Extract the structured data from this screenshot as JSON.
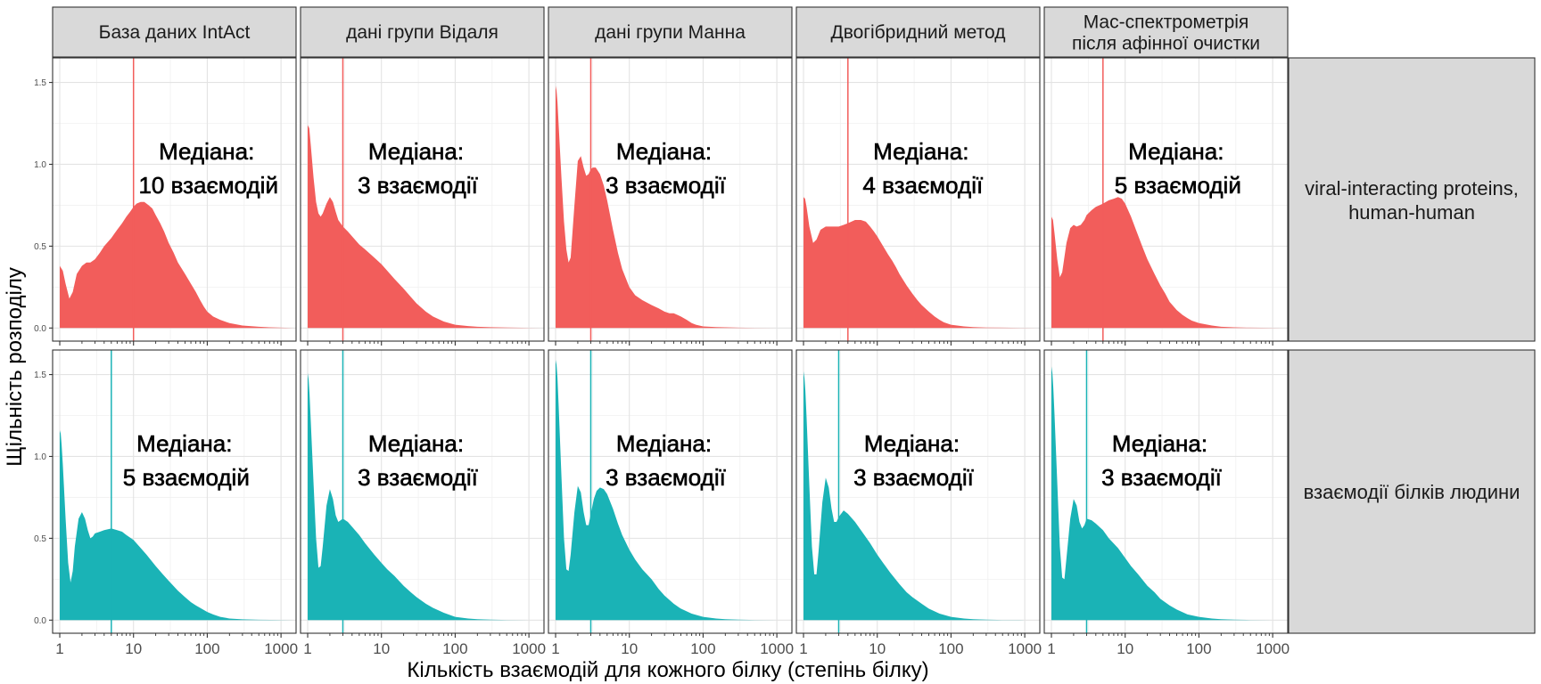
{
  "chart_data": {
    "type": "area",
    "title": "",
    "xlabel": "Кількість взаємодій для кожного білку (степінь білку)",
    "ylabel": "Щільність розподілу",
    "x_scale": "log10",
    "xlim": [
      0.8,
      1600
    ],
    "ylim": [
      -0.08,
      1.65
    ],
    "x_ticks": [
      1,
      10,
      100,
      1000
    ],
    "x_tick_labels": [
      "1",
      "10",
      "100",
      "1000"
    ],
    "y_ticks": [
      0,
      0.5,
      1,
      1.5
    ],
    "y_tick_labels": [
      "0.0",
      "0.5",
      "1.0",
      "1.5"
    ],
    "grid": true,
    "legend": "none",
    "columns": [
      "База даних IntAct",
      "дані групи Відаля",
      "дані групи Манна",
      "Двогібридний метод",
      "Мас-спектрометрія\nпісля афінної очистки"
    ],
    "rows": [
      {
        "label": "viral-interacting proteins,\nhuman-human",
        "color": "#F25D5B",
        "panels": [
          {
            "median": 10,
            "annotation": [
              "Медіана:",
              "10 взаємодій"
            ],
            "x": [
              1,
              1.1,
              1.2,
              1.35,
              1.5,
              1.7,
              2,
              2.3,
              2.6,
              3,
              3.5,
              4,
              5,
              6,
              7,
              8,
              9,
              10,
              11,
              12.5,
              14,
              16,
              18,
              20,
              23,
              26,
              30,
              35,
              40,
              50,
              60,
              70,
              80,
              90,
              100,
              120,
              150,
              200,
              300,
              500,
              700,
              1000,
              1500
            ],
            "y": [
              0.38,
              0.35,
              0.27,
              0.18,
              0.22,
              0.33,
              0.38,
              0.4,
              0.4,
              0.42,
              0.46,
              0.5,
              0.55,
              0.6,
              0.64,
              0.68,
              0.71,
              0.74,
              0.76,
              0.77,
              0.77,
              0.75,
              0.73,
              0.69,
              0.64,
              0.59,
              0.52,
              0.46,
              0.4,
              0.33,
              0.27,
              0.22,
              0.17,
              0.13,
              0.1,
              0.07,
              0.05,
              0.03,
              0.015,
              0.008,
              0.004,
              0.002,
              0
            ]
          },
          {
            "median": 3,
            "annotation": [
              "Медіана:",
              "3 взаємодії"
            ],
            "x": [
              1,
              1.05,
              1.1,
              1.2,
              1.3,
              1.4,
              1.5,
              1.6,
              1.8,
              2,
              2.2,
              2.4,
              2.6,
              3,
              3.5,
              4,
              5,
              6,
              8,
              10,
              12,
              15,
              20,
              25,
              30,
              40,
              50,
              70,
              100,
              150,
              200,
              300,
              500,
              1000,
              1500
            ],
            "y": [
              1.24,
              1.22,
              1.12,
              0.92,
              0.77,
              0.7,
              0.68,
              0.7,
              0.76,
              0.8,
              0.77,
              0.71,
              0.66,
              0.62,
              0.59,
              0.56,
              0.51,
              0.48,
              0.43,
              0.39,
              0.35,
              0.3,
              0.24,
              0.19,
              0.15,
              0.1,
              0.07,
              0.04,
              0.02,
              0.012,
              0.008,
              0.005,
              0.003,
              0.001,
              0
            ]
          },
          {
            "median": 3,
            "annotation": [
              "Медіана:",
              "3 взаємодії"
            ],
            "x": [
              1,
              1.03,
              1.06,
              1.1,
              1.2,
              1.3,
              1.4,
              1.5,
              1.6,
              1.8,
              2,
              2.2,
              2.4,
              2.6,
              2.8,
              3,
              3.2,
              3.5,
              4,
              4.5,
              5,
              6,
              7,
              8,
              10,
              12,
              15,
              20,
              25,
              30,
              35,
              40,
              45,
              50,
              60,
              70,
              80,
              100,
              150,
              200,
              300,
              500,
              1000,
              1500
            ],
            "y": [
              1.48,
              1.45,
              1.38,
              1.24,
              0.92,
              0.65,
              0.48,
              0.4,
              0.43,
              0.75,
              1.02,
              1.05,
              0.98,
              0.93,
              0.94,
              0.97,
              0.98,
              0.98,
              0.94,
              0.87,
              0.78,
              0.6,
              0.46,
              0.36,
              0.25,
              0.2,
              0.17,
              0.14,
              0.12,
              0.1,
              0.09,
              0.09,
              0.08,
              0.07,
              0.05,
              0.03,
              0.02,
              0.01,
              0.006,
              0.004,
              0.002,
              0.001,
              0.0005,
              0
            ]
          },
          {
            "median": 4,
            "annotation": [
              "Медіана:",
              "4 взаємодії"
            ],
            "x": [
              1,
              1.05,
              1.1,
              1.2,
              1.35,
              1.5,
              1.7,
              2,
              2.3,
              2.6,
              3,
              3.5,
              4,
              5,
              6,
              7,
              8,
              9,
              10,
              12,
              14,
              16,
              18,
              20,
              25,
              30,
              35,
              40,
              50,
              60,
              70,
              80,
              100,
              150,
              200,
              300,
              500,
              1000,
              1500
            ],
            "y": [
              0.8,
              0.79,
              0.74,
              0.62,
              0.52,
              0.54,
              0.6,
              0.62,
              0.62,
              0.62,
              0.62,
              0.63,
              0.64,
              0.66,
              0.66,
              0.65,
              0.62,
              0.59,
              0.56,
              0.5,
              0.45,
              0.41,
              0.37,
              0.33,
              0.26,
              0.21,
              0.17,
              0.14,
              0.1,
              0.07,
              0.05,
              0.035,
              0.02,
              0.01,
              0.006,
              0.003,
              0.002,
              0.001,
              0
            ]
          },
          {
            "median": 5,
            "annotation": [
              "Медіана:",
              "5 взаємодій"
            ],
            "x": [
              1,
              1.05,
              1.1,
              1.2,
              1.3,
              1.4,
              1.6,
              1.8,
              2,
              2.2,
              2.5,
              2.8,
              3,
              3.5,
              4,
              4.5,
              5,
              6,
              7,
              8,
              9,
              10,
              12,
              14,
              17,
              20,
              25,
              30,
              35,
              40,
              50,
              60,
              70,
              80,
              100,
              150,
              200,
              300,
              500,
              1000,
              1500
            ],
            "y": [
              0.68,
              0.66,
              0.58,
              0.42,
              0.31,
              0.34,
              0.52,
              0.61,
              0.63,
              0.62,
              0.63,
              0.66,
              0.69,
              0.72,
              0.74,
              0.75,
              0.76,
              0.78,
              0.79,
              0.8,
              0.79,
              0.76,
              0.68,
              0.6,
              0.5,
              0.42,
              0.33,
              0.26,
              0.21,
              0.16,
              0.11,
              0.08,
              0.06,
              0.045,
              0.03,
              0.015,
              0.008,
              0.004,
              0.002,
              0.001,
              0
            ]
          }
        ]
      },
      {
        "label": "взаємодії білків людини",
        "color": "#1AB3B6",
        "panels": [
          {
            "median": 5,
            "annotation": [
              "Медіана:",
              "5 взаємодій"
            ],
            "x": [
              1,
              1.03,
              1.06,
              1.1,
              1.2,
              1.3,
              1.4,
              1.5,
              1.6,
              1.8,
              2,
              2.2,
              2.4,
              2.6,
              2.8,
              3,
              3.5,
              4,
              5,
              6,
              7,
              8,
              10,
              12,
              15,
              20,
              25,
              30,
              40,
              50,
              60,
              70,
              80,
              100,
              120,
              150,
              200,
              300,
              500,
              1000,
              1500
            ],
            "y": [
              1.16,
              1.14,
              1.07,
              0.95,
              0.62,
              0.35,
              0.23,
              0.3,
              0.45,
              0.62,
              0.66,
              0.62,
              0.55,
              0.5,
              0.51,
              0.53,
              0.54,
              0.55,
              0.56,
              0.55,
              0.54,
              0.52,
              0.49,
              0.45,
              0.4,
              0.33,
              0.28,
              0.24,
              0.18,
              0.14,
              0.11,
              0.09,
              0.075,
              0.05,
              0.035,
              0.02,
              0.01,
              0.005,
              0.002,
              0.001,
              0
            ]
          },
          {
            "median": 3,
            "annotation": [
              "Медіана:",
              "3 взаємодії"
            ],
            "x": [
              1,
              1.03,
              1.06,
              1.1,
              1.2,
              1.3,
              1.4,
              1.5,
              1.6,
              1.8,
              2,
              2.2,
              2.4,
              2.6,
              2.8,
              3,
              3.5,
              4,
              5,
              6,
              8,
              10,
              12,
              15,
              20,
              25,
              30,
              40,
              50,
              70,
              100,
              150,
              200,
              300,
              500,
              1000,
              1500
            ],
            "y": [
              1.51,
              1.47,
              1.38,
              1.22,
              0.84,
              0.5,
              0.32,
              0.33,
              0.45,
              0.7,
              0.8,
              0.74,
              0.64,
              0.6,
              0.61,
              0.62,
              0.6,
              0.57,
              0.52,
              0.47,
              0.4,
              0.35,
              0.31,
              0.27,
              0.21,
              0.17,
              0.14,
              0.1,
              0.075,
              0.045,
              0.02,
              0.01,
              0.006,
              0.003,
              0.001,
              0.0005,
              0
            ]
          },
          {
            "median": 3,
            "annotation": [
              "Медіана:",
              "3 взаємодії"
            ],
            "x": [
              1,
              1.03,
              1.06,
              1.1,
              1.2,
              1.3,
              1.4,
              1.5,
              1.6,
              1.8,
              2,
              2.2,
              2.4,
              2.6,
              2.8,
              3,
              3.3,
              3.6,
              4,
              4.5,
              5,
              6,
              7,
              8,
              10,
              12,
              15,
              20,
              25,
              30,
              40,
              50,
              70,
              100,
              150,
              200,
              300,
              500,
              1000,
              1500
            ],
            "y": [
              1.59,
              1.56,
              1.48,
              1.31,
              0.88,
              0.5,
              0.31,
              0.3,
              0.4,
              0.66,
              0.82,
              0.78,
              0.66,
              0.58,
              0.58,
              0.65,
              0.74,
              0.79,
              0.81,
              0.8,
              0.77,
              0.68,
              0.59,
              0.52,
              0.43,
              0.37,
              0.31,
              0.25,
              0.19,
              0.15,
              0.1,
              0.07,
              0.04,
              0.02,
              0.01,
              0.006,
              0.003,
              0.001,
              0.0005,
              0
            ]
          },
          {
            "median": 3,
            "annotation": [
              "Медіана:",
              "3 взаємодії"
            ],
            "x": [
              1,
              1.03,
              1.06,
              1.1,
              1.2,
              1.3,
              1.4,
              1.5,
              1.6,
              1.8,
              2,
              2.2,
              2.4,
              2.6,
              2.8,
              3,
              3.5,
              4,
              5,
              6,
              8,
              10,
              12,
              15,
              20,
              25,
              30,
              40,
              50,
              70,
              100,
              150,
              200,
              300,
              500,
              1000,
              1500
            ],
            "y": [
              1.52,
              1.48,
              1.4,
              1.24,
              0.82,
              0.45,
              0.28,
              0.28,
              0.42,
              0.72,
              0.87,
              0.81,
              0.68,
              0.6,
              0.6,
              0.63,
              0.67,
              0.65,
              0.6,
              0.55,
              0.47,
              0.4,
              0.35,
              0.29,
              0.22,
              0.17,
              0.14,
              0.1,
              0.07,
              0.04,
              0.02,
              0.01,
              0.006,
              0.003,
              0.001,
              0.0005,
              0
            ]
          },
          {
            "median": 3,
            "annotation": [
              "Медіана:",
              "3 взаємодії"
            ],
            "x": [
              1,
              1.03,
              1.06,
              1.1,
              1.2,
              1.3,
              1.4,
              1.5,
              1.6,
              1.8,
              2,
              2.2,
              2.4,
              2.6,
              2.8,
              3,
              3.5,
              4,
              5,
              6,
              8,
              10,
              12,
              15,
              20,
              25,
              30,
              40,
              50,
              70,
              100,
              150,
              200,
              300,
              500,
              1000,
              1500
            ],
            "y": [
              1.55,
              1.51,
              1.42,
              1.26,
              0.84,
              0.45,
              0.26,
              0.25,
              0.38,
              0.62,
              0.74,
              0.7,
              0.6,
              0.56,
              0.58,
              0.62,
              0.61,
              0.59,
              0.55,
              0.5,
              0.44,
              0.38,
              0.33,
              0.28,
              0.21,
              0.17,
              0.13,
              0.09,
              0.065,
              0.035,
              0.02,
              0.01,
              0.006,
              0.003,
              0.001,
              0.0005,
              0
            ]
          }
        ]
      }
    ]
  }
}
